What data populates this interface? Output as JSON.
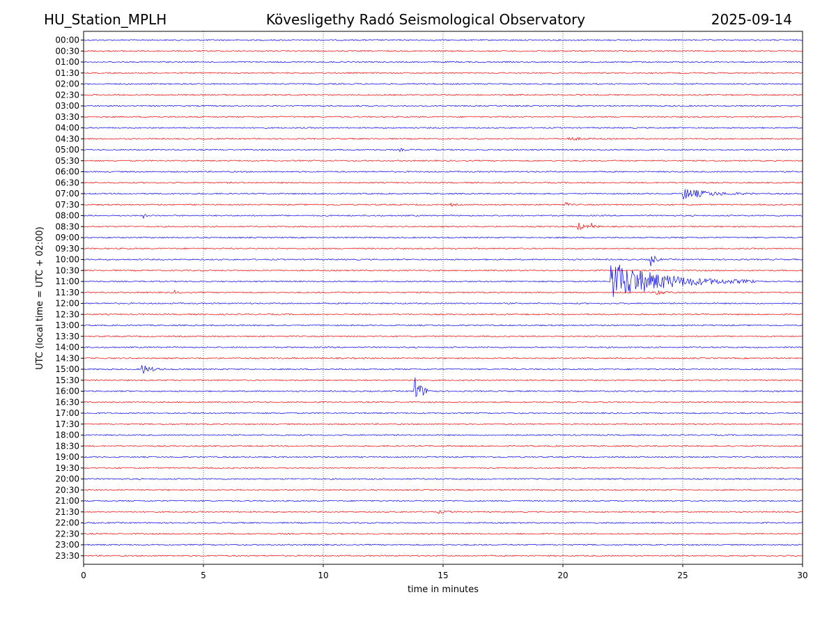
{
  "header": {
    "station": "HU_Station_MPLH",
    "observatory": "Kövesligethy Radó Seismological Observatory",
    "date": "2025-09-14"
  },
  "chart_data": {
    "type": "line",
    "xlabel": "time in minutes",
    "ylabel": "UTC (local time = UTC + 02:00)",
    "xlim": [
      0,
      30
    ],
    "xticks": [
      "0",
      "5",
      "10",
      "15",
      "20",
      "25",
      "30"
    ],
    "grid_x": true,
    "trace_colors": [
      "#0000ff",
      "#ff0000"
    ],
    "rows": [
      "00:00",
      "00:30",
      "01:00",
      "01:30",
      "02:00",
      "02:30",
      "03:00",
      "03:30",
      "04:00",
      "04:30",
      "05:00",
      "05:30",
      "06:00",
      "06:30",
      "07:00",
      "07:30",
      "08:00",
      "08:30",
      "09:00",
      "09:30",
      "10:00",
      "10:30",
      "11:00",
      "11:30",
      "12:00",
      "12:30",
      "13:00",
      "13:30",
      "14:00",
      "14:30",
      "15:00",
      "15:30",
      "16:00",
      "16:30",
      "17:00",
      "17:30",
      "18:00",
      "18:30",
      "19:00",
      "19:30",
      "20:00",
      "20:30",
      "21:00",
      "21:30",
      "22:00",
      "22:30",
      "23:00",
      "23:30"
    ],
    "events": [
      {
        "row": "04:30",
        "start_min": 20.2,
        "amplitude": 0.25,
        "duration_min": 1.6
      },
      {
        "row": "05:00",
        "start_min": 13.2,
        "amplitude": 0.2,
        "duration_min": 0.6
      },
      {
        "row": "07:00",
        "start_min": 25.0,
        "amplitude": 0.85,
        "duration_min": 3.0
      },
      {
        "row": "07:30",
        "start_min": 15.3,
        "amplitude": 0.3,
        "duration_min": 0.4
      },
      {
        "row": "07:30",
        "start_min": 20.1,
        "amplitude": 0.35,
        "duration_min": 0.4
      },
      {
        "row": "08:00",
        "start_min": 2.5,
        "amplitude": 0.35,
        "duration_min": 0.2
      },
      {
        "row": "08:30",
        "start_min": 20.6,
        "amplitude": 0.75,
        "duration_min": 0.6
      },
      {
        "row": "08:30",
        "start_min": 21.2,
        "amplitude": 0.55,
        "duration_min": 0.4
      },
      {
        "row": "10:00",
        "start_min": 23.6,
        "amplitude": 1.7,
        "duration_min": 0.5
      },
      {
        "row": "11:00",
        "start_min": 22.0,
        "amplitude": 3.0,
        "duration_min": 6.0
      },
      {
        "row": "11:30",
        "start_min": 23.9,
        "amplitude": 0.55,
        "duration_min": 0.8
      },
      {
        "row": "11:30",
        "start_min": 3.8,
        "amplitude": 0.25,
        "duration_min": 0.5
      },
      {
        "row": "15:00",
        "start_min": 2.4,
        "amplitude": 0.85,
        "duration_min": 1.0
      },
      {
        "row": "16:00",
        "start_min": 13.8,
        "amplitude": 2.4,
        "duration_min": 0.8
      },
      {
        "row": "21:30",
        "start_min": 14.8,
        "amplitude": 0.2,
        "duration_min": 1.0
      }
    ]
  }
}
